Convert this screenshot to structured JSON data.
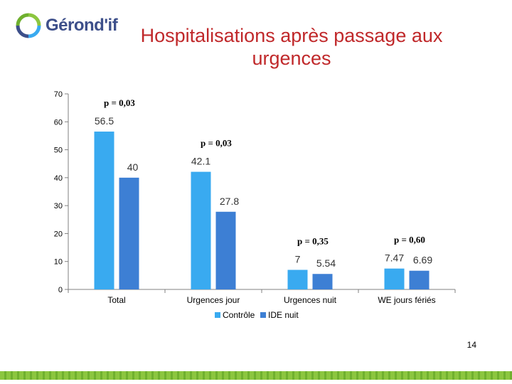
{
  "logo": {
    "text": "Gérond'if"
  },
  "slide": {
    "page_number": "14"
  },
  "colors": {
    "title": "#c0282a",
    "controle": "#39aaf0",
    "ide_nuit": "#3d7fd4",
    "footer": "#8cc63f"
  },
  "chart_data": {
    "type": "bar",
    "title": "Hospitalisations après passage aux urgences",
    "categories": [
      "Total",
      "Urgences jour",
      "Urgences nuit",
      "WE jours fériés"
    ],
    "series": [
      {
        "name": "Contrôle",
        "values": [
          56.5,
          42.1,
          7,
          7.47
        ],
        "labels": [
          "56.5",
          "42.1",
          "7",
          "7.47"
        ]
      },
      {
        "name": "IDE nuit",
        "values": [
          40,
          27.8,
          5.54,
          6.69
        ],
        "labels": [
          "40",
          "27.8",
          "5.54",
          "6.69"
        ]
      }
    ],
    "p_values": [
      "p = 0,03",
      "p = 0,03",
      "p = 0,35",
      "p = 0,60"
    ],
    "ylim": [
      0,
      70
    ],
    "yticks": [
      0,
      10,
      20,
      30,
      40,
      50,
      60,
      70
    ],
    "legend": "bottom"
  }
}
